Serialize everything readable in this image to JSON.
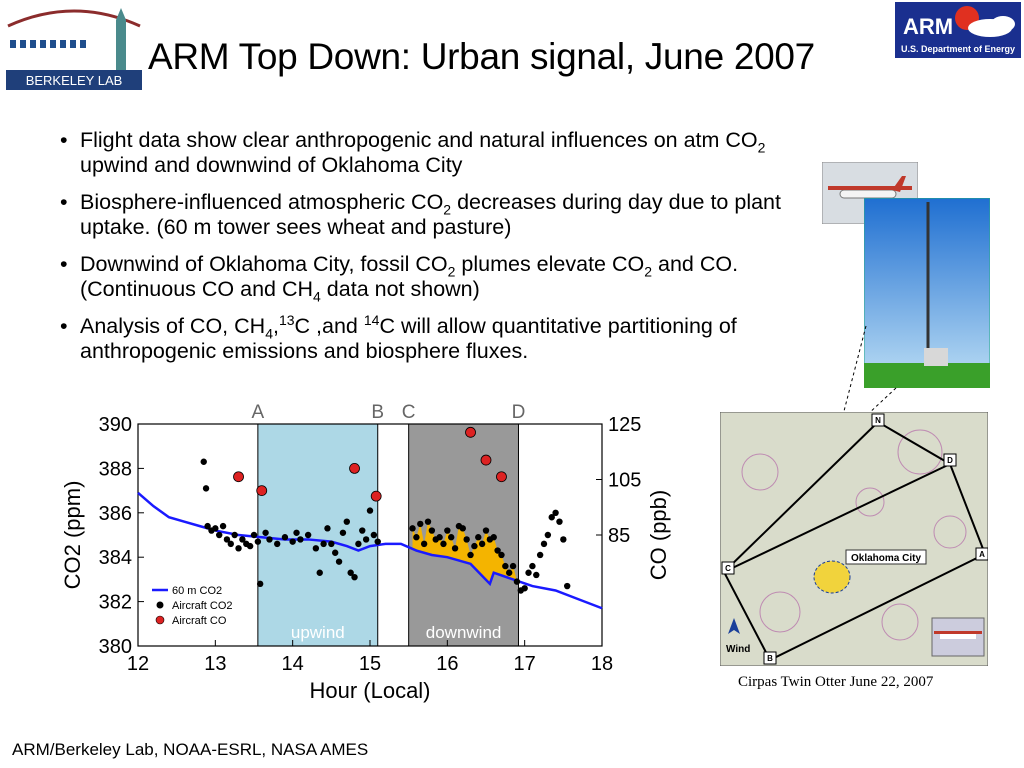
{
  "title": "ARM Top Down: Urban signal, June 2007",
  "logos": {
    "left_text": "BERKELEY LAB",
    "right_brand": "ARM",
    "right_sub": "U.S. Department of Energy"
  },
  "bullets": [
    {
      "parts": [
        "Flight data show clear anthropogenic and natural influences on atm CO",
        "2",
        " upwind and downwind of Oklahoma City"
      ]
    },
    {
      "parts": [
        "Biosphere-influenced atmospheric CO",
        "2",
        " decreases during day due to plant uptake. (60 m tower sees wheat and pasture)"
      ]
    },
    {
      "parts": [
        "Downwind of Oklahoma City, fossil CO",
        "2",
        " plumes elevate CO",
        "2",
        " and CO.  (Continuous CO and CH",
        "4",
        " data not shown)"
      ]
    },
    {
      "parts": [
        "Analysis of CO, CH",
        "4",
        ",",
        "13",
        "C ,and ",
        "14",
        "C will allow quantitative partitioning of anthropogenic emissions and biosphere fluxes."
      ]
    }
  ],
  "footer": "ARM/Berkeley Lab, NOAA-ESRL, NASA AMES",
  "caption": "Cirpas Twin Otter June 22, 2007",
  "map": {
    "city_label": "Oklahoma City",
    "wind_label": "Wind",
    "waypoints": [
      "N",
      "D",
      "A",
      "B",
      "C"
    ]
  },
  "chart_data": {
    "type": "scatter",
    "xlabel": "Hour (Local)",
    "ylabel_left": "CO2 (ppm)",
    "ylabel_right": "CO (ppb)",
    "xlim": [
      12,
      18
    ],
    "ylim": [
      380,
      390
    ],
    "ylim_right": [
      45,
      125
    ],
    "x_ticks": [
      "12",
      "13",
      "14",
      "15",
      "16",
      "17",
      "18"
    ],
    "y_ticks": [
      "380",
      "382",
      "384",
      "386",
      "388",
      "390"
    ],
    "y_right_ticks": [
      "85",
      "105",
      "125"
    ],
    "regions": [
      {
        "label": "upwind",
        "x_start": 13.55,
        "x_end": 15.1,
        "color": "#add8e6"
      },
      {
        "label": "downwind",
        "x_start": 15.5,
        "x_end": 16.92,
        "color": "#999999"
      }
    ],
    "region_markers": [
      {
        "label": "A",
        "x": 13.55
      },
      {
        "label": "B",
        "x": 15.1
      },
      {
        "label": "C",
        "x": 15.5
      },
      {
        "label": "D",
        "x": 16.92
      }
    ],
    "legend": [
      "60 m CO2",
      "Aircraft CO2",
      "Aircraft CO"
    ],
    "series": [
      {
        "name": "60 m CO2",
        "type": "line",
        "color": "#1a1aff",
        "points": [
          [
            12.0,
            386.9
          ],
          [
            12.2,
            386.3
          ],
          [
            12.4,
            385.8
          ],
          [
            12.6,
            385.6
          ],
          [
            12.8,
            385.4
          ],
          [
            13.0,
            385.2
          ],
          [
            13.3,
            385.0
          ],
          [
            13.6,
            384.9
          ],
          [
            13.9,
            384.8
          ],
          [
            14.2,
            384.8
          ],
          [
            14.5,
            384.7
          ],
          [
            14.7,
            384.5
          ],
          [
            14.85,
            384.3
          ],
          [
            15.0,
            384.5
          ],
          [
            15.2,
            384.6
          ],
          [
            15.4,
            384.6
          ],
          [
            15.6,
            384.3
          ],
          [
            15.8,
            384.1
          ],
          [
            16.0,
            384.0
          ],
          [
            16.3,
            383.7
          ],
          [
            16.55,
            382.8
          ],
          [
            16.6,
            383.3
          ],
          [
            16.85,
            383.0
          ],
          [
            17.1,
            382.7
          ],
          [
            17.4,
            382.5
          ],
          [
            17.7,
            382.1
          ],
          [
            18.0,
            381.7
          ]
        ]
      },
      {
        "name": "Aircraft CO2",
        "type": "scatter",
        "color": "#000000",
        "points": [
          [
            12.85,
            388.3
          ],
          [
            12.88,
            387.1
          ],
          [
            12.9,
            385.4
          ],
          [
            12.95,
            385.2
          ],
          [
            13.0,
            385.3
          ],
          [
            13.05,
            385.0
          ],
          [
            13.1,
            385.4
          ],
          [
            13.15,
            384.8
          ],
          [
            13.2,
            384.6
          ],
          [
            13.25,
            385.0
          ],
          [
            13.3,
            384.4
          ],
          [
            13.35,
            384.8
          ],
          [
            13.4,
            384.6
          ],
          [
            13.45,
            384.5
          ],
          [
            13.5,
            385.0
          ],
          [
            13.55,
            384.7
          ],
          [
            13.58,
            382.8
          ],
          [
            13.65,
            385.1
          ],
          [
            13.7,
            384.8
          ],
          [
            13.8,
            384.6
          ],
          [
            13.9,
            384.9
          ],
          [
            14.0,
            384.7
          ],
          [
            14.05,
            385.1
          ],
          [
            14.1,
            384.8
          ],
          [
            14.2,
            385.0
          ],
          [
            14.3,
            384.4
          ],
          [
            14.35,
            383.3
          ],
          [
            14.4,
            384.6
          ],
          [
            14.45,
            385.3
          ],
          [
            14.5,
            384.6
          ],
          [
            14.55,
            384.2
          ],
          [
            14.6,
            383.8
          ],
          [
            14.65,
            385.1
          ],
          [
            14.7,
            385.6
          ],
          [
            14.75,
            383.3
          ],
          [
            14.8,
            383.1
          ],
          [
            14.85,
            384.6
          ],
          [
            14.9,
            385.2
          ],
          [
            14.95,
            384.8
          ],
          [
            15.0,
            386.1
          ],
          [
            15.05,
            385.0
          ],
          [
            15.1,
            384.7
          ],
          [
            15.55,
            385.3
          ],
          [
            15.6,
            384.9
          ],
          [
            15.65,
            385.5
          ],
          [
            15.7,
            384.6
          ],
          [
            15.75,
            385.6
          ],
          [
            15.8,
            385.2
          ],
          [
            15.85,
            384.8
          ],
          [
            15.9,
            384.9
          ],
          [
            15.95,
            384.6
          ],
          [
            16.0,
            385.2
          ],
          [
            16.05,
            384.9
          ],
          [
            16.1,
            384.4
          ],
          [
            16.15,
            385.4
          ],
          [
            16.2,
            385.3
          ],
          [
            16.25,
            384.8
          ],
          [
            16.3,
            384.1
          ],
          [
            16.35,
            384.5
          ],
          [
            16.4,
            384.9
          ],
          [
            16.45,
            384.6
          ],
          [
            16.5,
            385.2
          ],
          [
            16.55,
            384.8
          ],
          [
            16.6,
            384.9
          ],
          [
            16.65,
            384.3
          ],
          [
            16.7,
            384.1
          ],
          [
            16.75,
            383.6
          ],
          [
            16.8,
            383.3
          ],
          [
            16.85,
            383.6
          ],
          [
            16.9,
            382.9
          ],
          [
            16.95,
            382.5
          ],
          [
            17.0,
            382.6
          ],
          [
            17.05,
            383.3
          ],
          [
            17.1,
            383.6
          ],
          [
            17.15,
            383.2
          ],
          [
            17.2,
            384.1
          ],
          [
            17.25,
            384.6
          ],
          [
            17.3,
            385.0
          ],
          [
            17.35,
            385.8
          ],
          [
            17.4,
            386.0
          ],
          [
            17.45,
            385.6
          ],
          [
            17.5,
            384.8
          ],
          [
            17.55,
            382.7
          ]
        ]
      },
      {
        "name": "Aircraft CO",
        "type": "scatter",
        "color": "#dd2222",
        "points": [
          [
            13.3,
            106
          ],
          [
            13.6,
            101
          ],
          [
            14.8,
            109
          ],
          [
            15.08,
            99
          ],
          [
            16.3,
            122
          ],
          [
            16.5,
            112
          ],
          [
            16.7,
            106
          ]
        ]
      }
    ]
  }
}
